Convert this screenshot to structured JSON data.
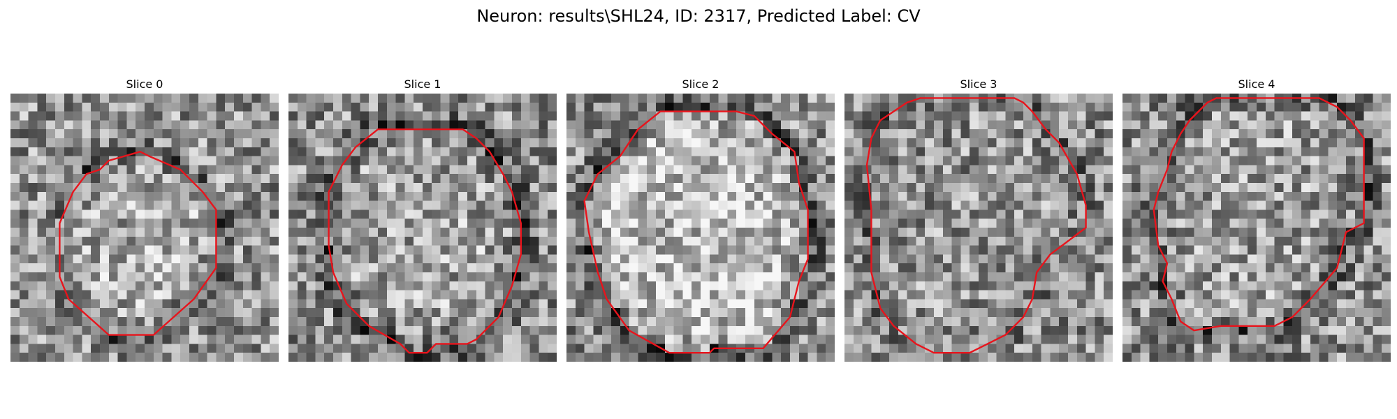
{
  "figure": {
    "title": "Neuron: results\\SHL24, ID: 2317, Predicted Label: CV"
  },
  "colors": {
    "background": "#ffffff",
    "contour": "#e8141c",
    "colormap": "gray"
  },
  "panels": [
    {
      "title": "Slice 0",
      "image_grid": 30,
      "contour": [
        [
          11,
          7.5
        ],
        [
          14.5,
          6.5
        ],
        [
          15.5,
          7
        ],
        [
          19,
          8.5
        ],
        [
          21.5,
          11
        ],
        [
          23,
          13
        ],
        [
          23,
          19.5
        ],
        [
          20.5,
          23
        ],
        [
          16,
          27
        ],
        [
          11,
          27
        ],
        [
          6.5,
          23
        ],
        [
          5.5,
          20.5
        ],
        [
          5.5,
          14.5
        ],
        [
          7,
          11
        ],
        [
          8.5,
          9
        ],
        [
          10,
          8.5
        ]
      ]
    },
    {
      "title": "Slice 1",
      "image_grid": 30,
      "contour": [
        [
          10,
          4
        ],
        [
          19.5,
          4
        ],
        [
          21,
          5
        ],
        [
          22.5,
          6.5
        ],
        [
          24,
          9
        ],
        [
          25,
          11
        ],
        [
          26,
          14.5
        ],
        [
          26,
          18
        ],
        [
          25,
          21.5
        ],
        [
          23.5,
          25
        ],
        [
          21,
          27.5
        ],
        [
          20,
          28
        ],
        [
          16.5,
          28
        ],
        [
          15.5,
          29
        ],
        [
          13.5,
          29
        ],
        [
          12.5,
          28
        ],
        [
          9,
          26
        ],
        [
          6.5,
          23.5
        ],
        [
          5,
          20
        ],
        [
          4.5,
          17
        ],
        [
          4.5,
          11
        ],
        [
          6,
          8
        ],
        [
          7.5,
          6
        ]
      ]
    },
    {
      "title": "Slice 2",
      "image_grid": 30,
      "contour": [
        [
          10.5,
          2
        ],
        [
          19,
          2
        ],
        [
          21,
          2.5
        ],
        [
          23,
          4.5
        ],
        [
          25.5,
          6.5
        ],
        [
          26,
          10
        ],
        [
          27,
          13
        ],
        [
          27,
          18.5
        ],
        [
          26,
          21
        ],
        [
          25,
          25
        ],
        [
          22,
          28.5
        ],
        [
          16.5,
          28.5
        ],
        [
          16,
          29
        ],
        [
          11.5,
          29
        ],
        [
          7,
          26.5
        ],
        [
          4.5,
          23
        ],
        [
          3.5,
          20
        ],
        [
          2.5,
          15.5
        ],
        [
          2,
          12
        ],
        [
          3.5,
          9
        ],
        [
          6,
          7
        ],
        [
          8,
          4
        ]
      ]
    },
    {
      "title": "Slice 3",
      "image_grid": 30,
      "contour": [
        [
          8.5,
          0.5
        ],
        [
          7,
          1
        ],
        [
          5.5,
          2
        ],
        [
          4,
          3
        ],
        [
          3,
          5
        ],
        [
          2.5,
          8
        ],
        [
          3,
          13
        ],
        [
          3,
          20
        ],
        [
          3.5,
          22
        ],
        [
          4,
          24
        ],
        [
          5.5,
          26
        ],
        [
          8,
          28
        ],
        [
          10,
          29
        ],
        [
          14,
          29
        ],
        [
          16,
          28
        ],
        [
          18,
          27
        ],
        [
          20,
          25
        ],
        [
          21,
          23
        ],
        [
          21.5,
          20
        ],
        [
          23,
          18
        ],
        [
          27,
          15
        ],
        [
          27,
          12.5
        ],
        [
          26,
          9
        ],
        [
          24,
          5.5
        ],
        [
          22.5,
          4
        ],
        [
          21,
          2
        ],
        [
          20,
          1
        ],
        [
          19,
          0.5
        ]
      ]
    },
    {
      "title": "Slice 4",
      "image_grid": 30,
      "contour": [
        [
          10.5,
          0.5
        ],
        [
          9.5,
          1
        ],
        [
          8.5,
          2
        ],
        [
          7.5,
          3
        ],
        [
          6.5,
          4.5
        ],
        [
          5.5,
          6.5
        ],
        [
          5,
          8.5
        ],
        [
          4,
          11
        ],
        [
          3.5,
          13
        ],
        [
          4,
          17
        ],
        [
          5,
          19
        ],
        [
          4.5,
          21
        ],
        [
          5.5,
          23
        ],
        [
          6.5,
          25.5
        ],
        [
          8,
          26.5
        ],
        [
          11,
          26
        ],
        [
          15,
          26
        ],
        [
          17,
          26
        ],
        [
          19,
          25
        ],
        [
          21,
          23
        ],
        [
          24,
          19.5
        ],
        [
          25,
          15.5
        ],
        [
          27,
          14.5
        ],
        [
          27,
          5
        ],
        [
          25.5,
          3
        ],
        [
          24,
          1.5
        ],
        [
          22,
          0.5
        ]
      ]
    }
  ]
}
